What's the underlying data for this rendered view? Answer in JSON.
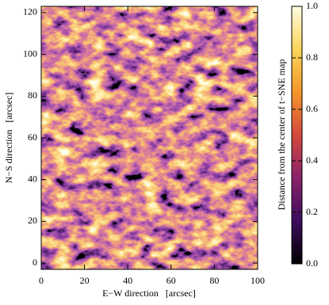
{
  "chart_data": {
    "type": "heatmap",
    "xlabel": "E−W direction   [arcsec]",
    "ylabel": "N−S direction   [arcsec]",
    "xlim": [
      0,
      100
    ],
    "xticks": [
      0,
      20,
      40,
      60,
      80,
      100
    ],
    "ylim": [
      -3,
      123
    ],
    "yticks": [
      0,
      20,
      40,
      60,
      80,
      100,
      120
    ],
    "colorbar": {
      "label": "Distance from the center of t−SNE map",
      "lim": [
        0,
        1
      ],
      "ticks": [
        {
          "value": 0,
          "label": "0.0"
        },
        0.2,
        0.4,
        0.6,
        0.8,
        {
          "value": 1,
          "label": "1.0"
        }
      ],
      "colormap": [
        "#000000",
        "#3d0c5e",
        "#8a226a",
        "#d4483b",
        "#f5962a",
        "#fbd55a",
        "#fffbe0"
      ]
    }
  }
}
